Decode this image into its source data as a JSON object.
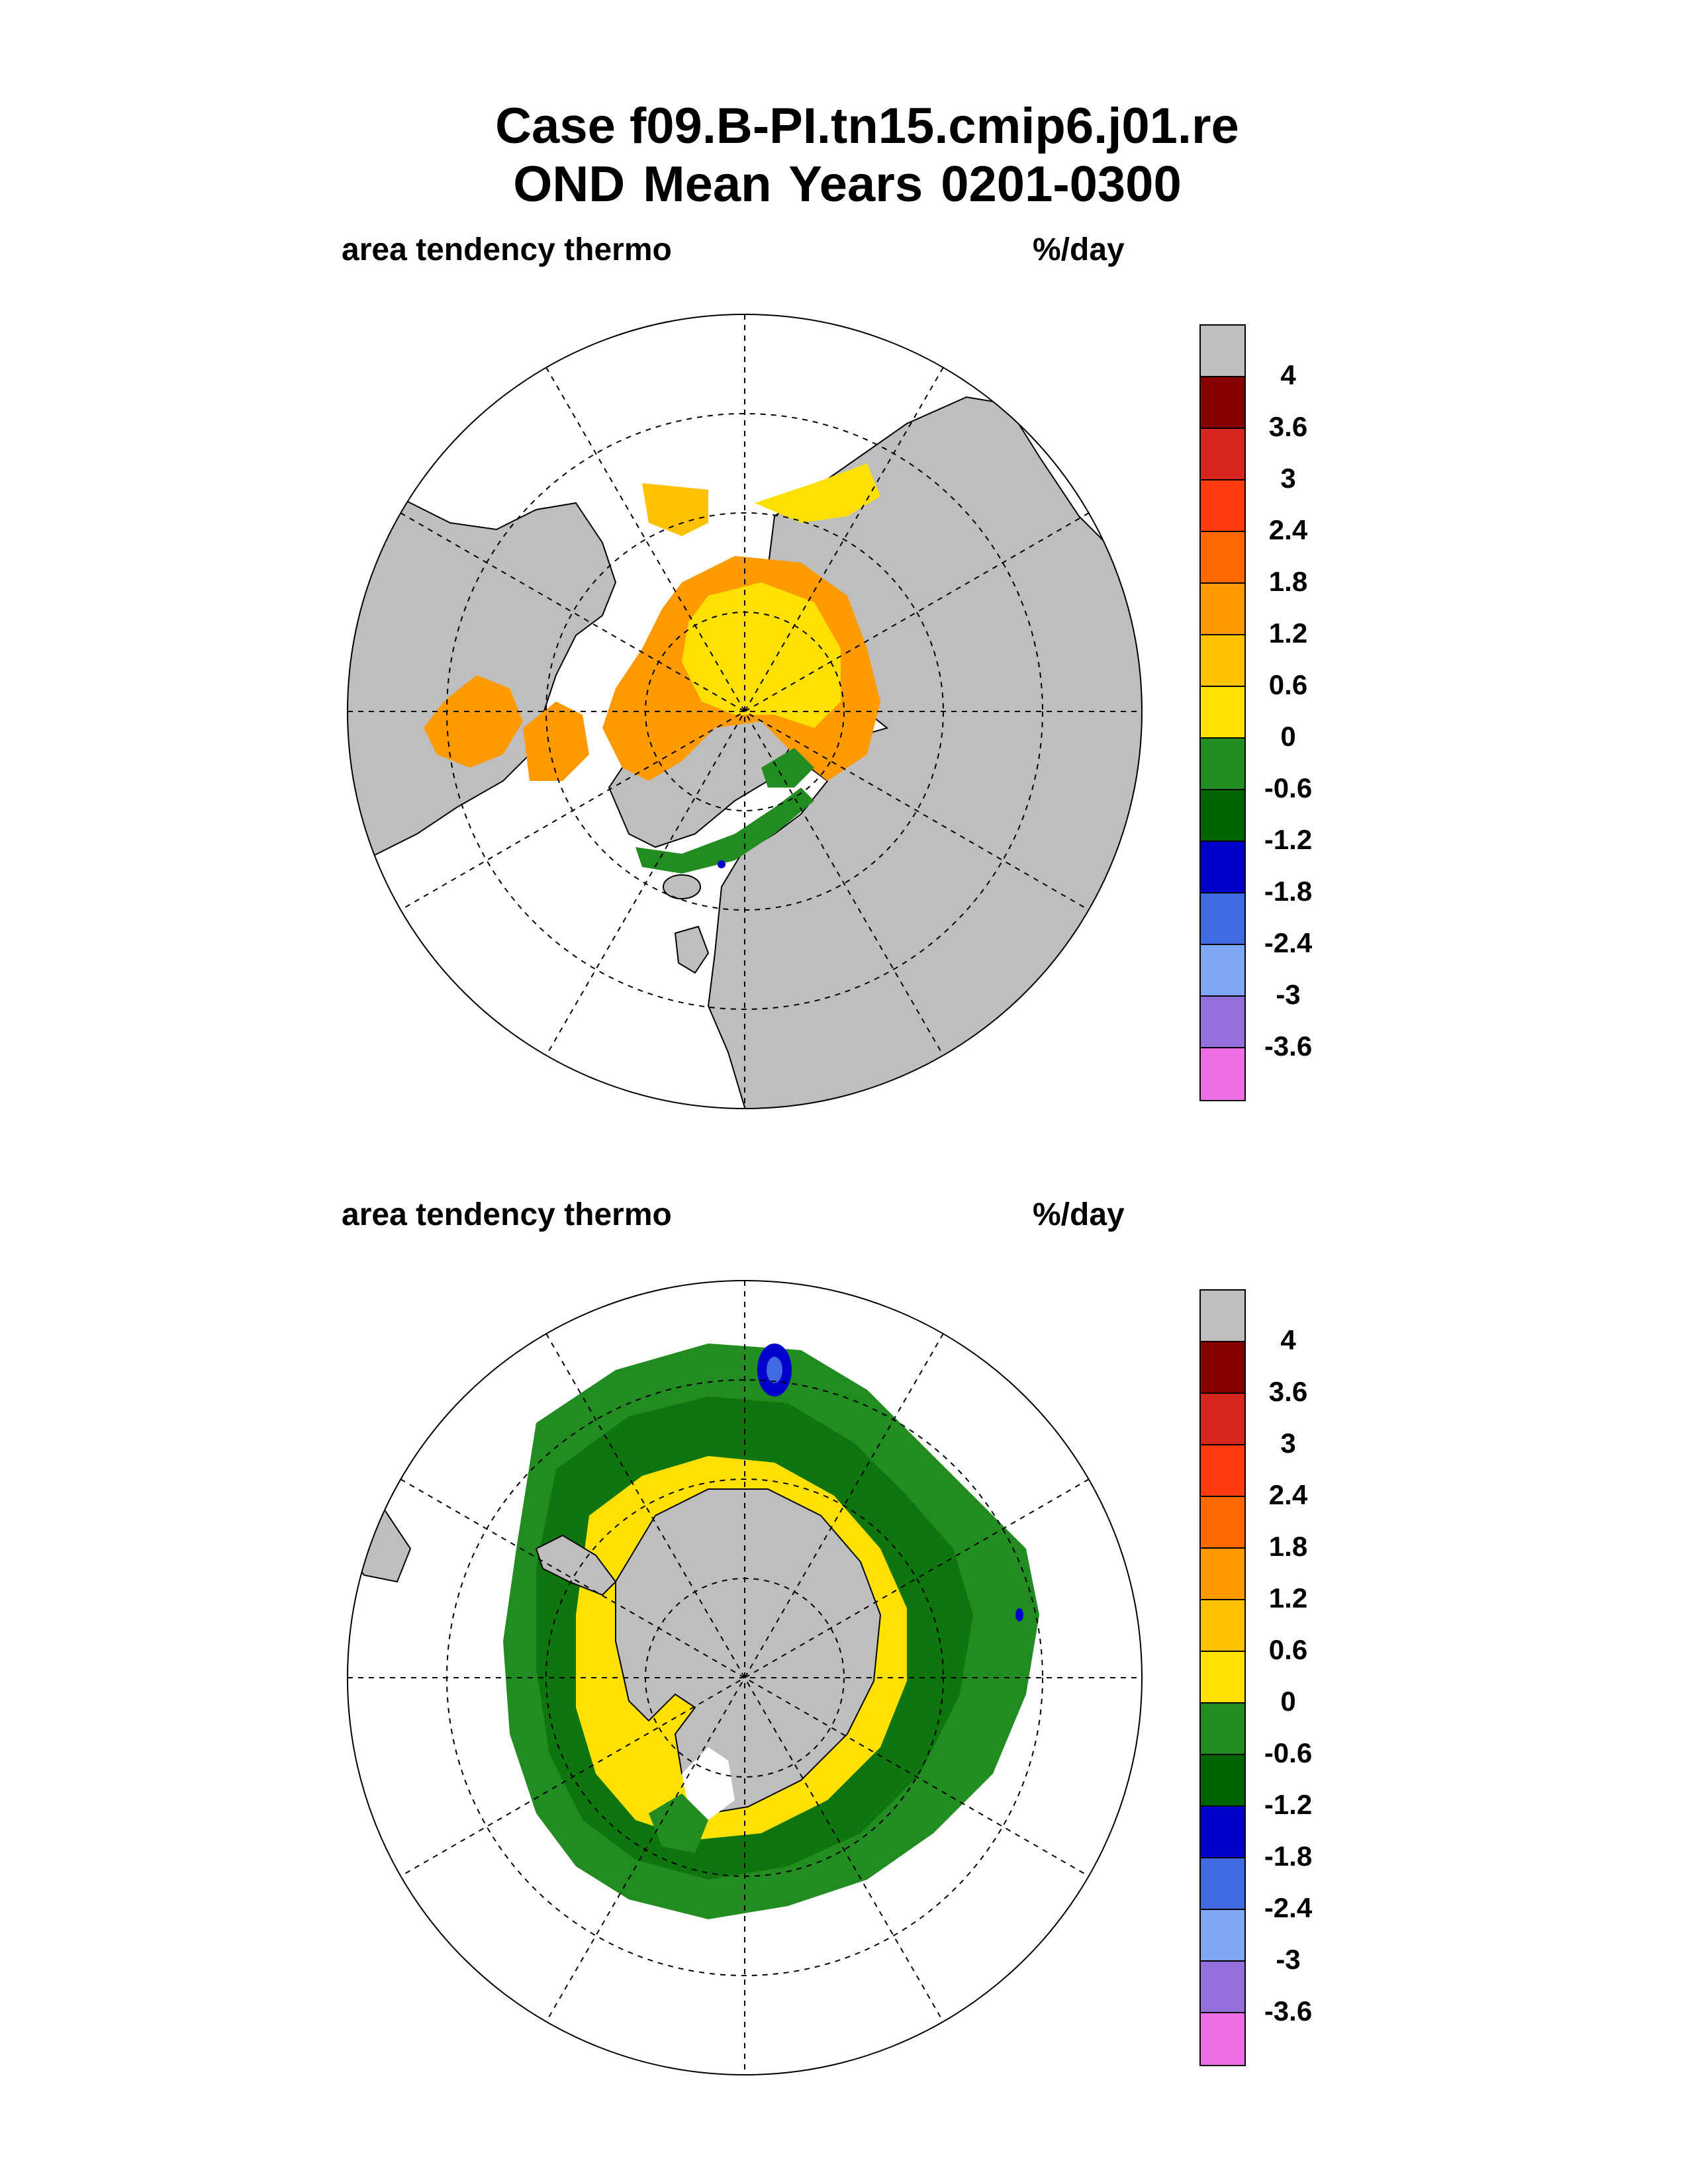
{
  "title": {
    "line1": "Case f09.B-PI.tn15.cmip6.j01.re",
    "line2": "OND Mean   Years 0201-0300"
  },
  "panels": [
    {
      "label": "area tendency thermo",
      "units": "%/day",
      "hemisphere": "north"
    },
    {
      "label": "area tendency thermo",
      "units": "%/day",
      "hemisphere": "south"
    }
  ],
  "colorbar": {
    "colors": [
      "#bebebe",
      "#870000",
      "#d7261e",
      "#ff3c0f",
      "#ff6a00",
      "#ff9a00",
      "#ffc100",
      "#ffe000",
      "#228b22",
      "#006400",
      "#0000cd",
      "#4169e1",
      "#7fa6f5",
      "#9370db",
      "#ee6ee3"
    ],
    "labels": [
      "4",
      "3.6",
      "3",
      "2.4",
      "1.8",
      "1.2",
      "0.6",
      "0",
      "-0.6",
      "-1.2",
      "-1.8",
      "-2.4",
      "-3",
      "-3.6"
    ]
  },
  "colors": {
    "land": "#bebebe",
    "ocean": "#ffffff"
  }
}
